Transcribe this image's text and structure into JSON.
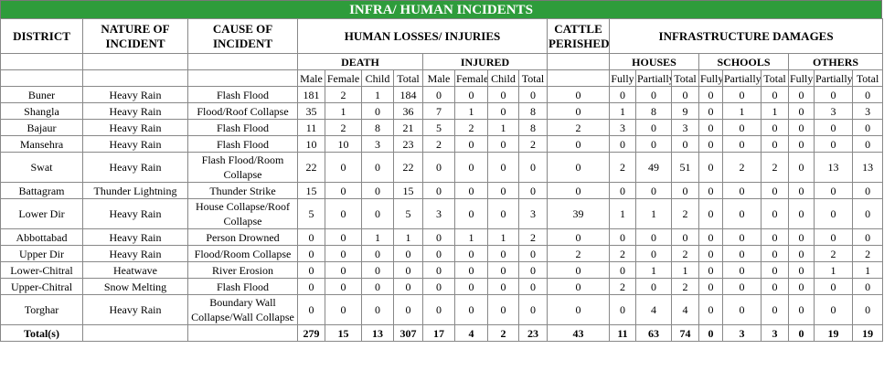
{
  "title": "INFRA/ HUMAN INCIDENTS",
  "header": {
    "district": "DISTRICT",
    "nature": "NATURE OF INCIDENT",
    "cause": "CAUSE OF INCIDENT",
    "human": "HUMAN LOSSES/ INJURIES",
    "cattle": "CATTLE PERISHED",
    "infra": "INFRASTRUCTURE DAMAGES",
    "groups": [
      {
        "name": "DEATH",
        "cols": [
          "Male",
          "Female",
          "Child",
          "Total"
        ]
      },
      {
        "name": "INJURED",
        "cols": [
          "Male",
          "Female",
          "Child",
          "Total"
        ]
      }
    ],
    "infra_groups": [
      {
        "name": "HOUSES",
        "cols": [
          "Fully",
          "Partially",
          "Total"
        ]
      },
      {
        "name": "SCHOOLS",
        "cols": [
          "Fully",
          "Partially",
          "Total"
        ]
      },
      {
        "name": "OTHERS",
        "cols": [
          "Fully",
          "Partially",
          "Total"
        ]
      }
    ]
  },
  "rows": [
    {
      "district": "Buner",
      "nature": "Heavy Rain",
      "cause": "Flash Flood",
      "values": [
        181,
        2,
        1,
        184,
        0,
        0,
        0,
        0,
        0,
        0,
        0,
        0,
        0,
        0,
        0,
        0,
        0,
        0
      ]
    },
    {
      "district": "Shangla",
      "nature": "Heavy Rain",
      "cause": "Flood/Roof Collapse",
      "values": [
        35,
        1,
        0,
        36,
        7,
        1,
        0,
        8,
        0,
        1,
        8,
        9,
        0,
        1,
        1,
        0,
        3,
        3
      ]
    },
    {
      "district": "Bajaur",
      "nature": "Heavy Rain",
      "cause": "Flash Flood",
      "values": [
        11,
        2,
        8,
        21,
        5,
        2,
        1,
        8,
        2,
        3,
        0,
        3,
        0,
        0,
        0,
        0,
        0,
        0
      ]
    },
    {
      "district": "Mansehra",
      "nature": "Heavy Rain",
      "cause": "Flash Flood",
      "values": [
        10,
        10,
        3,
        23,
        2,
        0,
        0,
        2,
        0,
        0,
        0,
        0,
        0,
        0,
        0,
        0,
        0,
        0
      ]
    },
    {
      "district": "Swat",
      "nature": "Heavy Rain",
      "cause": "Flash Flood/Room Collapse",
      "values": [
        22,
        0,
        0,
        22,
        0,
        0,
        0,
        0,
        0,
        2,
        49,
        51,
        0,
        2,
        2,
        0,
        13,
        13
      ]
    },
    {
      "district": "Battagram",
      "nature": "Thunder Lightning",
      "cause": "Thunder Strike",
      "values": [
        15,
        0,
        0,
        15,
        0,
        0,
        0,
        0,
        0,
        0,
        0,
        0,
        0,
        0,
        0,
        0,
        0,
        0
      ]
    },
    {
      "district": "Lower Dir",
      "nature": "Heavy Rain",
      "cause": "House Collapse/Roof Collapse",
      "values": [
        5,
        0,
        0,
        5,
        3,
        0,
        0,
        3,
        39,
        1,
        1,
        2,
        0,
        0,
        0,
        0,
        0,
        0
      ]
    },
    {
      "district": "Abbottabad",
      "nature": "Heavy Rain",
      "cause": "Person Drowned",
      "values": [
        0,
        0,
        1,
        1,
        0,
        1,
        1,
        2,
        0,
        0,
        0,
        0,
        0,
        0,
        0,
        0,
        0,
        0
      ]
    },
    {
      "district": "Upper Dir",
      "nature": "Heavy Rain",
      "cause": "Flood/Room Collapse",
      "values": [
        0,
        0,
        0,
        0,
        0,
        0,
        0,
        0,
        2,
        2,
        0,
        2,
        0,
        0,
        0,
        0,
        2,
        2
      ]
    },
    {
      "district": "Lower-Chitral",
      "nature": "Heatwave",
      "cause": "River Erosion",
      "values": [
        0,
        0,
        0,
        0,
        0,
        0,
        0,
        0,
        0,
        0,
        1,
        1,
        0,
        0,
        0,
        0,
        1,
        1
      ]
    },
    {
      "district": "Upper-Chitral",
      "nature": "Snow Melting",
      "cause": "Flash Flood",
      "values": [
        0,
        0,
        0,
        0,
        0,
        0,
        0,
        0,
        0,
        2,
        0,
        2,
        0,
        0,
        0,
        0,
        0,
        0
      ]
    },
    {
      "district": "Torghar",
      "nature": "Heavy Rain",
      "cause": "Boundary Wall Collapse/Wall Collapse",
      "values": [
        0,
        0,
        0,
        0,
        0,
        0,
        0,
        0,
        0,
        0,
        4,
        4,
        0,
        0,
        0,
        0,
        0,
        0
      ]
    }
  ],
  "totals": {
    "label": "Total(s)",
    "values": [
      279,
      15,
      13,
      307,
      17,
      4,
      2,
      23,
      43,
      11,
      63,
      74,
      0,
      3,
      3,
      0,
      19,
      19
    ]
  }
}
